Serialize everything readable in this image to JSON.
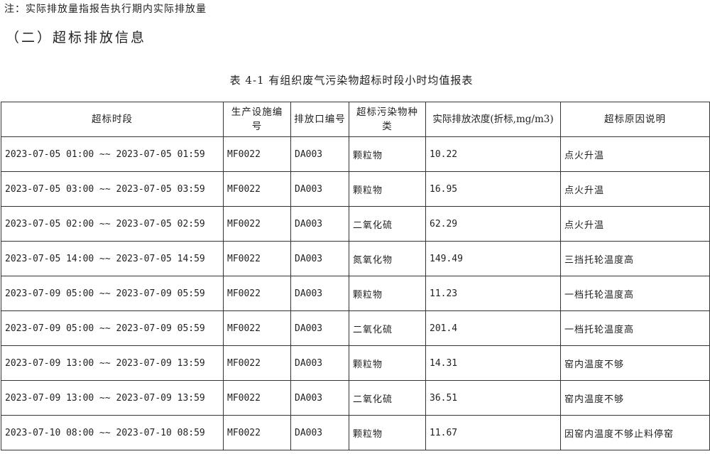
{
  "note": "注：实际排放量指报告执行期内实际排放量",
  "section_title": "（二）超标排放信息",
  "table_caption": "表 4-1 有组织废气污染物超标时段小时均值报表",
  "table": {
    "headers": [
      "超标时段",
      "生产设施编号",
      "排放口编号",
      "超标污染物种类",
      "实际排放浓度(折标,mg/m3)",
      "超标原因说明"
    ],
    "rows": [
      {
        "period": "2023-07-05 01:00 ~~ 2023-07-05 01:59",
        "facility": "MF0022",
        "outlet": "DA003",
        "pollutant": "颗粒物",
        "concentration": "10.22",
        "reason": "点火升温"
      },
      {
        "period": "2023-07-05 03:00 ~~ 2023-07-05 03:59",
        "facility": "MF0022",
        "outlet": "DA003",
        "pollutant": "颗粒物",
        "concentration": "16.95",
        "reason": "点火升温"
      },
      {
        "period": "2023-07-05 02:00 ~~ 2023-07-05 02:59",
        "facility": "MF0022",
        "outlet": "DA003",
        "pollutant": "二氧化硫",
        "concentration": "62.29",
        "reason": "点火升温"
      },
      {
        "period": "2023-07-05 14:00 ~~ 2023-07-05 14:59",
        "facility": "MF0022",
        "outlet": "DA003",
        "pollutant": "氮氧化物",
        "concentration": "149.49",
        "reason": "三挡托轮温度高"
      },
      {
        "period": "2023-07-09 05:00 ~~ 2023-07-09 05:59",
        "facility": "MF0022",
        "outlet": "DA003",
        "pollutant": "颗粒物",
        "concentration": "11.23",
        "reason": "一档托轮温度高"
      },
      {
        "period": "2023-07-09 05:00 ~~ 2023-07-09 05:59",
        "facility": "MF0022",
        "outlet": "DA003",
        "pollutant": "二氧化硫",
        "concentration": "201.4",
        "reason": "一档托轮温度高"
      },
      {
        "period": "2023-07-09 13:00 ~~ 2023-07-09 13:59",
        "facility": "MF0022",
        "outlet": "DA003",
        "pollutant": "颗粒物",
        "concentration": "14.31",
        "reason": "窑内温度不够"
      },
      {
        "period": "2023-07-09 13:00 ~~ 2023-07-09 13:59",
        "facility": "MF0022",
        "outlet": "DA003",
        "pollutant": "二氧化硫",
        "concentration": "36.51",
        "reason": "窑内温度不够"
      },
      {
        "period": "2023-07-10 08:00 ~~ 2023-07-10 08:59",
        "facility": "MF0022",
        "outlet": "DA003",
        "pollutant": "颗粒物",
        "concentration": "11.67",
        "reason": "因窑内温度不够止料停窑"
      }
    ]
  }
}
